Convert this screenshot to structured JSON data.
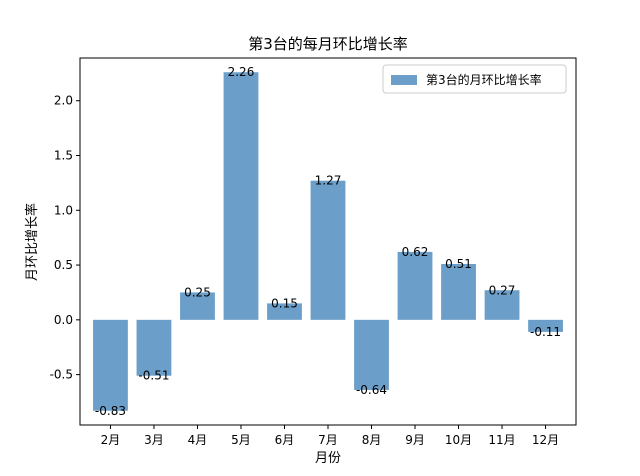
{
  "chart_data": {
    "type": "bar",
    "title": "第3台的每月环比增长率",
    "xlabel": "月份",
    "ylabel": "月环比增长率",
    "categories": [
      "2月",
      "3月",
      "4月",
      "5月",
      "6月",
      "7月",
      "8月",
      "9月",
      "10月",
      "11月",
      "12月"
    ],
    "series": [
      {
        "name": "第3台的月环比增长率",
        "values": [
          -0.83,
          -0.51,
          0.25,
          2.26,
          0.15,
          1.27,
          -0.64,
          0.62,
          0.51,
          0.27,
          -0.11
        ],
        "labels": [
          "-0.83",
          "-0.51",
          "0.25",
          "2.26",
          "0.15",
          "1.27",
          "-0.64",
          "0.62",
          "0.51",
          "0.27",
          "-0.11"
        ],
        "color": "#6b9ec8"
      }
    ],
    "ylim": [
      -0.96,
      2.39
    ],
    "yticks": [
      -0.5,
      0.0,
      0.5,
      1.0,
      1.5,
      2.0
    ],
    "ytick_labels": [
      "-0.5",
      "0.0",
      "0.5",
      "1.0",
      "1.5",
      "2.0"
    ],
    "grid": false,
    "legend_position": "top-right"
  }
}
